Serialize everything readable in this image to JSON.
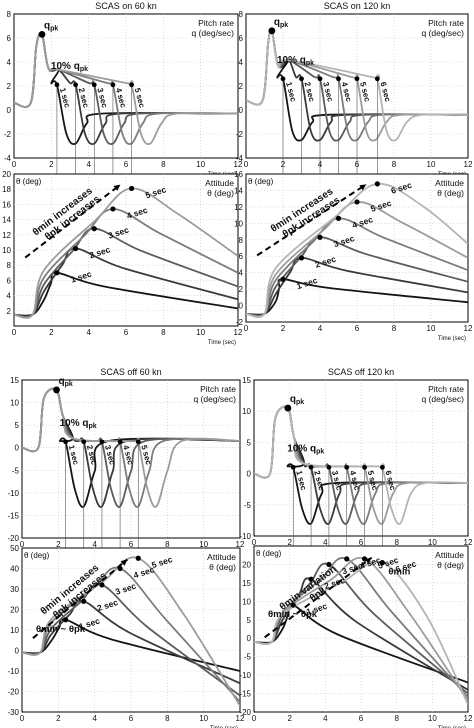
{
  "chart_data": [
    {
      "id": "a",
      "type": "line",
      "title": "SCAS on 60 kn",
      "top": {
        "label_line1": "Pitch rate",
        "label_line2": "q (deg/sec)",
        "xlim": [
          0,
          12
        ],
        "ylim": [
          -4,
          8
        ],
        "xticks": [
          0,
          2,
          4,
          6,
          8,
          10,
          12
        ],
        "yticks": [
          -4,
          -2,
          0,
          2,
          4,
          6,
          8
        ],
        "xtick_labels": [
          "0",
          "2",
          "4",
          "6",
          "8",
          "10",
          "12"
        ],
        "ytick_labels": [
          "-4",
          "-2",
          "0",
          "2",
          "4",
          "6",
          "8"
        ],
        "xlabel": "Time (sec)",
        "peak_label": "q",
        "peak_sub": "pk",
        "percent_label": "10% q",
        "percent_sub": "pk",
        "peak": [
          1.5,
          6.3
        ],
        "durations": [
          "1 sec",
          "2 sec",
          "3 sec",
          "4 sec",
          "5 sec"
        ],
        "tx": [
          2.3,
          3.3,
          4.3,
          5.3,
          6.3
        ],
        "valley_y": -2.8,
        "tail_y": -0.3,
        "y10": 2.1,
        "pre_y": 0.6
      },
      "bottom": {
        "label_line1": "Attitude",
        "label_line2": "θ (deg)",
        "ylabel": "θ (deg)",
        "xlim": [
          0,
          12
        ],
        "ylim": [
          0,
          20
        ],
        "xticks": [
          0,
          2,
          4,
          6,
          8,
          10,
          12
        ],
        "yticks": [
          2,
          4,
          6,
          8,
          10,
          12,
          14,
          16,
          18,
          20
        ],
        "xtick_labels": [
          "0",
          "2",
          "4",
          "6",
          "8",
          "10",
          "12"
        ],
        "ytick_labels": [
          "2",
          "4",
          "6",
          "8",
          "10",
          "12",
          "14",
          "16",
          "18",
          "20"
        ],
        "xlabel": "Time (sec)",
        "annotation_line1": "θmin increases",
        "annotation_line2": "θpk increases",
        "min_label": "",
        "durations": [
          "1 sec",
          "2 sec",
          "3 sec",
          "4 sec",
          "5 sec"
        ],
        "peak_y": [
          7,
          10.2,
          12.8,
          15.4,
          18.1
        ],
        "end_y": [
          2.3,
          3.5,
          5.2,
          7,
          9.2
        ],
        "base_y": 1.5
      }
    },
    {
      "id": "b",
      "type": "line",
      "title": "SCAS on 120 kn",
      "top": {
        "label_line1": "Pitch rate",
        "label_line2": "q (deg/sec)",
        "xlim": [
          0,
          12
        ],
        "ylim": [
          -4,
          8
        ],
        "xticks": [
          0,
          2,
          4,
          6,
          8,
          10,
          12
        ],
        "yticks": [
          -4,
          -2,
          0,
          2,
          4,
          6,
          8
        ],
        "xtick_labels": [
          "0",
          "2",
          "4",
          "6",
          "8",
          "10",
          "12"
        ],
        "ytick_labels": [
          "-4",
          "-2",
          "0",
          "2",
          "4",
          "6",
          "8"
        ],
        "xlabel": "Time (sec)",
        "peak_label": "q",
        "peak_sub": "pk",
        "percent_label": "10% q",
        "percent_sub": "pk",
        "peak": [
          1.4,
          6.6
        ],
        "durations": [
          "1 sec",
          "2 sec",
          "3 sec",
          "4 sec",
          "5 sec",
          "6 sec"
        ],
        "tx": [
          2,
          3,
          4,
          5,
          6,
          7.1
        ],
        "valley_y": -2.5,
        "tail_y": -0.4,
        "y10": 2.6,
        "pre_y": 0.8
      },
      "bottom": {
        "label_line1": "Attitude",
        "label_line2": "θ (deg)",
        "ylabel": "θ (deg)",
        "xlim": [
          0,
          12
        ],
        "ylim": [
          -2,
          16
        ],
        "xticks": [
          0,
          2,
          4,
          6,
          8,
          10,
          12
        ],
        "yticks": [
          -2,
          0,
          2,
          4,
          6,
          8,
          10,
          12,
          14,
          16
        ],
        "xtick_labels": [
          "0",
          "2",
          "4",
          "6",
          "8",
          "10",
          "12"
        ],
        "ytick_labels": [
          "-2",
          "0",
          "2",
          "4",
          "6",
          "8",
          "10",
          "12",
          "14",
          "16"
        ],
        "xlabel": "Time (sec)",
        "annotation_line1": "θmin increases",
        "annotation_line2": "θpk increases",
        "min_label": "",
        "durations": [
          "1 sec",
          "2 sec",
          "3 sec",
          "4 sec",
          "5 sec",
          "6 sec"
        ],
        "peak_y": [
          3.2,
          5.8,
          8.3,
          10.6,
          12.6,
          14.8
        ],
        "end_y": [
          0.4,
          1.6,
          2.9,
          4.3,
          5.8,
          7.5
        ],
        "base_y": -1
      }
    },
    {
      "id": "c",
      "type": "line",
      "title": "SCAS off 60 kn",
      "top": {
        "label_line1": "Pitch rate",
        "label_line2": "q (deg/sec)",
        "xlim": [
          0,
          12
        ],
        "ylim": [
          -20,
          15
        ],
        "xticks": [
          0,
          2,
          4,
          6,
          8,
          10,
          12
        ],
        "yticks": [
          -20,
          -15,
          -10,
          -5,
          0,
          5,
          10,
          15
        ],
        "xtick_labels": [
          "0",
          "2",
          "4",
          "6",
          "8",
          "10",
          "12"
        ],
        "ytick_labels": [
          "-20",
          "-15",
          "-10",
          "-5",
          "0",
          "5",
          "10",
          "15"
        ],
        "xlabel": "",
        "peak_label": "q",
        "peak_sub": "pk",
        "percent_label": "10% q",
        "percent_sub": "pk",
        "peak": [
          1.9,
          12.8
        ],
        "durations": [
          "1 sec",
          "2 sec",
          "3 sec",
          "4 sec",
          "5 sec"
        ],
        "tx": [
          2.4,
          3.4,
          4.4,
          5.4,
          6.4
        ],
        "valley_y": -13,
        "tail_y": 1.5,
        "y10": 1.3,
        "pre_y": 0
      },
      "bottom": {
        "label_line1": "Attitude",
        "label_line2": "θ (deg)",
        "ylabel": "θ (deg)",
        "xlim": [
          0,
          12
        ],
        "ylim": [
          -30,
          50
        ],
        "xticks": [
          0,
          2,
          4,
          6,
          8,
          10,
          12
        ],
        "yticks": [
          -30,
          -20,
          -10,
          0,
          10,
          20,
          30,
          40,
          50
        ],
        "xtick_labels": [
          "0",
          "2",
          "4",
          "6",
          "8",
          "10",
          "12"
        ],
        "ytick_labels": [
          "-30",
          "-20",
          "-10",
          "0",
          "10",
          "20",
          "30",
          "40",
          "50"
        ],
        "xlabel": "Time (sec)",
        "annotation_line1": "θmin increases",
        "annotation_line2": "θpk increases",
        "min_label": "θmin ~ θpk",
        "durations": [
          "1 sec",
          "2 sec",
          "3 sec",
          "4 sec",
          "5 sec"
        ],
        "peak_y": [
          15,
          24,
          32,
          40,
          45
        ],
        "end_y": [
          -10,
          -16,
          -22,
          -25,
          -27
        ],
        "base_y": -1
      }
    },
    {
      "id": "d",
      "type": "line",
      "title": "SCAS off 120 kn",
      "top": {
        "label_line1": "Pitch rate",
        "label_line2": "q (deg/sec)",
        "xlim": [
          0,
          12
        ],
        "ylim": [
          -10,
          15
        ],
        "xticks": [
          0,
          2,
          4,
          6,
          8,
          10,
          12
        ],
        "yticks": [
          -10,
          -5,
          0,
          5,
          10,
          15
        ],
        "xtick_labels": [
          "0",
          "2",
          "4",
          "6",
          "8",
          "10",
          "12"
        ],
        "ytick_labels": [
          "-10",
          "-5",
          "0",
          "5",
          "10",
          "15"
        ],
        "xlabel": "",
        "peak_label": "q",
        "peak_sub": "pk",
        "percent_label": "10% q",
        "percent_sub": "pk",
        "peak": [
          1.9,
          10.5
        ],
        "durations": [
          "1 sec",
          "2 sec",
          "3 sec",
          "4 sec",
          "5 sec",
          "6 sec"
        ],
        "tx": [
          2.2,
          3.2,
          4.2,
          5.2,
          6.2,
          7.2
        ],
        "valley_y": -8,
        "tail_y": -1.5,
        "y10": 1,
        "pre_y": 0
      },
      "bottom": {
        "label_line1": "Attitude",
        "label_line2": "θ (deg)",
        "ylabel": "θ (deg)",
        "xlim": [
          0,
          12
        ],
        "ylim": [
          -20,
          25
        ],
        "xticks": [
          0,
          2,
          4,
          6,
          8,
          10,
          12
        ],
        "yticks": [
          -20,
          -15,
          -10,
          -5,
          0,
          5,
          10,
          15,
          20
        ],
        "xtick_labels": [
          "0",
          "2",
          "4",
          "6",
          "8",
          "10",
          "12"
        ],
        "ytick_labels": [
          "-20",
          "-15",
          "-10",
          "-5",
          "0",
          "5",
          "10",
          "15",
          "20"
        ],
        "xlabel": "Time (sec)",
        "annotation_line1": "θmin variation",
        "annotation_line2": "θpk",
        "min_label": "θmin ~ θpk",
        "min_label_right": "θmin",
        "durations": [
          "1 sec",
          "2 sec",
          "3 sec",
          "4 sec",
          "5 sec",
          "6 sec"
        ],
        "peak_y": [
          9,
          16,
          20,
          21.5,
          21.5,
          20.5
        ],
        "end_y": [
          -12,
          -14,
          -15,
          -16,
          -17,
          -18
        ],
        "base_y": -1
      }
    }
  ]
}
